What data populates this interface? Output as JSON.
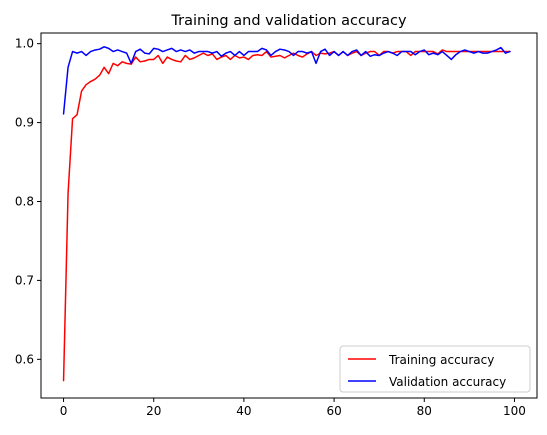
{
  "chart_data": {
    "type": "line",
    "title": "Training and validation accuracy",
    "xlabel": "",
    "ylabel": "",
    "xlim": [
      -5,
      105
    ],
    "ylim": [
      0.551,
      1.0135
    ],
    "xticks": [
      0,
      20,
      40,
      60,
      80,
      100
    ],
    "yticks": [
      0.6,
      0.7,
      0.8,
      0.9,
      1.0
    ],
    "xtick_labels": [
      "0",
      "20",
      "40",
      "60",
      "80",
      "100"
    ],
    "ytick_labels": [
      "0.6",
      "0.7",
      "0.8",
      "0.9",
      "1.0"
    ],
    "grid": false,
    "legend_position": "lower-right",
    "x": [
      0,
      1,
      2,
      3,
      4,
      5,
      6,
      7,
      8,
      9,
      10,
      11,
      12,
      13,
      14,
      15,
      16,
      17,
      18,
      19,
      20,
      21,
      22,
      23,
      24,
      25,
      26,
      27,
      28,
      29,
      30,
      31,
      32,
      33,
      34,
      35,
      36,
      37,
      38,
      39,
      40,
      41,
      42,
      43,
      44,
      45,
      46,
      47,
      48,
      49,
      50,
      51,
      52,
      53,
      54,
      55,
      56,
      57,
      58,
      59,
      60,
      61,
      62,
      63,
      64,
      65,
      66,
      67,
      68,
      69,
      70,
      71,
      72,
      73,
      74,
      75,
      76,
      77,
      78,
      79,
      80,
      81,
      82,
      83,
      84,
      85,
      86,
      87,
      88,
      89,
      90,
      91,
      92,
      93,
      94,
      95,
      96,
      97,
      98,
      99
    ],
    "series": [
      {
        "name": "Training accuracy",
        "color": "#ff0000",
        "values": [
          0.573,
          0.81,
          0.905,
          0.91,
          0.94,
          0.948,
          0.952,
          0.955,
          0.96,
          0.97,
          0.962,
          0.975,
          0.972,
          0.977,
          0.975,
          0.974,
          0.983,
          0.977,
          0.978,
          0.98,
          0.98,
          0.985,
          0.975,
          0.983,
          0.98,
          0.978,
          0.977,
          0.985,
          0.98,
          0.982,
          0.985,
          0.988,
          0.985,
          0.987,
          0.98,
          0.983,
          0.985,
          0.98,
          0.985,
          0.982,
          0.983,
          0.98,
          0.985,
          0.986,
          0.985,
          0.99,
          0.983,
          0.984,
          0.985,
          0.982,
          0.985,
          0.988,
          0.985,
          0.983,
          0.987,
          0.99,
          0.985,
          0.988,
          0.987,
          0.988,
          0.99,
          0.985,
          0.99,
          0.985,
          0.988,
          0.99,
          0.985,
          0.988,
          0.99,
          0.99,
          0.985,
          0.99,
          0.99,
          0.988,
          0.99,
          0.99,
          0.99,
          0.985,
          0.99,
          0.99,
          0.99,
          0.99,
          0.99,
          0.987,
          0.992,
          0.99,
          0.99,
          0.99,
          0.99,
          0.99,
          0.99,
          0.99,
          0.99,
          0.99,
          0.99,
          0.99,
          0.99,
          0.99,
          0.99,
          0.99
        ]
      },
      {
        "name": "Validation accuracy",
        "color": "#0000ff",
        "values": [
          0.911,
          0.97,
          0.99,
          0.988,
          0.99,
          0.985,
          0.99,
          0.992,
          0.993,
          0.996,
          0.994,
          0.99,
          0.992,
          0.99,
          0.988,
          0.975,
          0.99,
          0.993,
          0.988,
          0.987,
          0.994,
          0.993,
          0.99,
          0.992,
          0.994,
          0.99,
          0.992,
          0.99,
          0.992,
          0.988,
          0.99,
          0.99,
          0.99,
          0.988,
          0.99,
          0.984,
          0.988,
          0.99,
          0.985,
          0.99,
          0.985,
          0.99,
          0.99,
          0.99,
          0.994,
          0.992,
          0.985,
          0.99,
          0.993,
          0.992,
          0.99,
          0.985,
          0.99,
          0.99,
          0.988,
          0.99,
          0.975,
          0.99,
          0.993,
          0.985,
          0.99,
          0.985,
          0.99,
          0.985,
          0.99,
          0.992,
          0.985,
          0.99,
          0.984,
          0.986,
          0.985,
          0.988,
          0.99,
          0.988,
          0.985,
          0.99,
          0.99,
          0.99,
          0.986,
          0.99,
          0.992,
          0.986,
          0.988,
          0.986,
          0.99,
          0.985,
          0.98,
          0.986,
          0.99,
          0.992,
          0.99,
          0.988,
          0.99,
          0.988,
          0.988,
          0.99,
          0.992,
          0.995,
          0.988,
          0.99
        ]
      }
    ]
  }
}
